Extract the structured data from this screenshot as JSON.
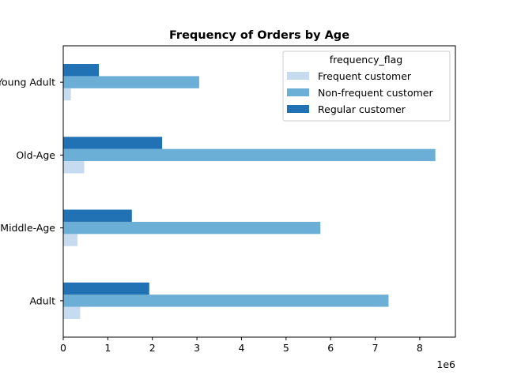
{
  "chart_data": {
    "type": "bar",
    "orientation": "horizontal",
    "title": "Frequency of Orders by Age",
    "xlabel": "",
    "ylabel": "",
    "x_offset_text": "1e6",
    "xlim": [
      0,
      8800000
    ],
    "xticks": [
      0,
      1,
      2,
      3,
      4,
      5,
      6,
      7,
      8
    ],
    "categories": [
      "Adult",
      "Middle-Age",
      "Old-Age",
      "Young Adult"
    ],
    "legend": {
      "title": "frequency_flag",
      "position": "top-right"
    },
    "grid": false,
    "series": [
      {
        "name": "Frequent customer",
        "color": "#c6dbef",
        "values": [
          380000,
          320000,
          470000,
          170000
        ]
      },
      {
        "name": "Non-frequent customer",
        "color": "#6baed6",
        "values": [
          7300000,
          5770000,
          8350000,
          3050000
        ]
      },
      {
        "name": "Regular customer",
        "color": "#2171b5",
        "values": [
          1930000,
          1540000,
          2220000,
          800000
        ]
      }
    ]
  }
}
